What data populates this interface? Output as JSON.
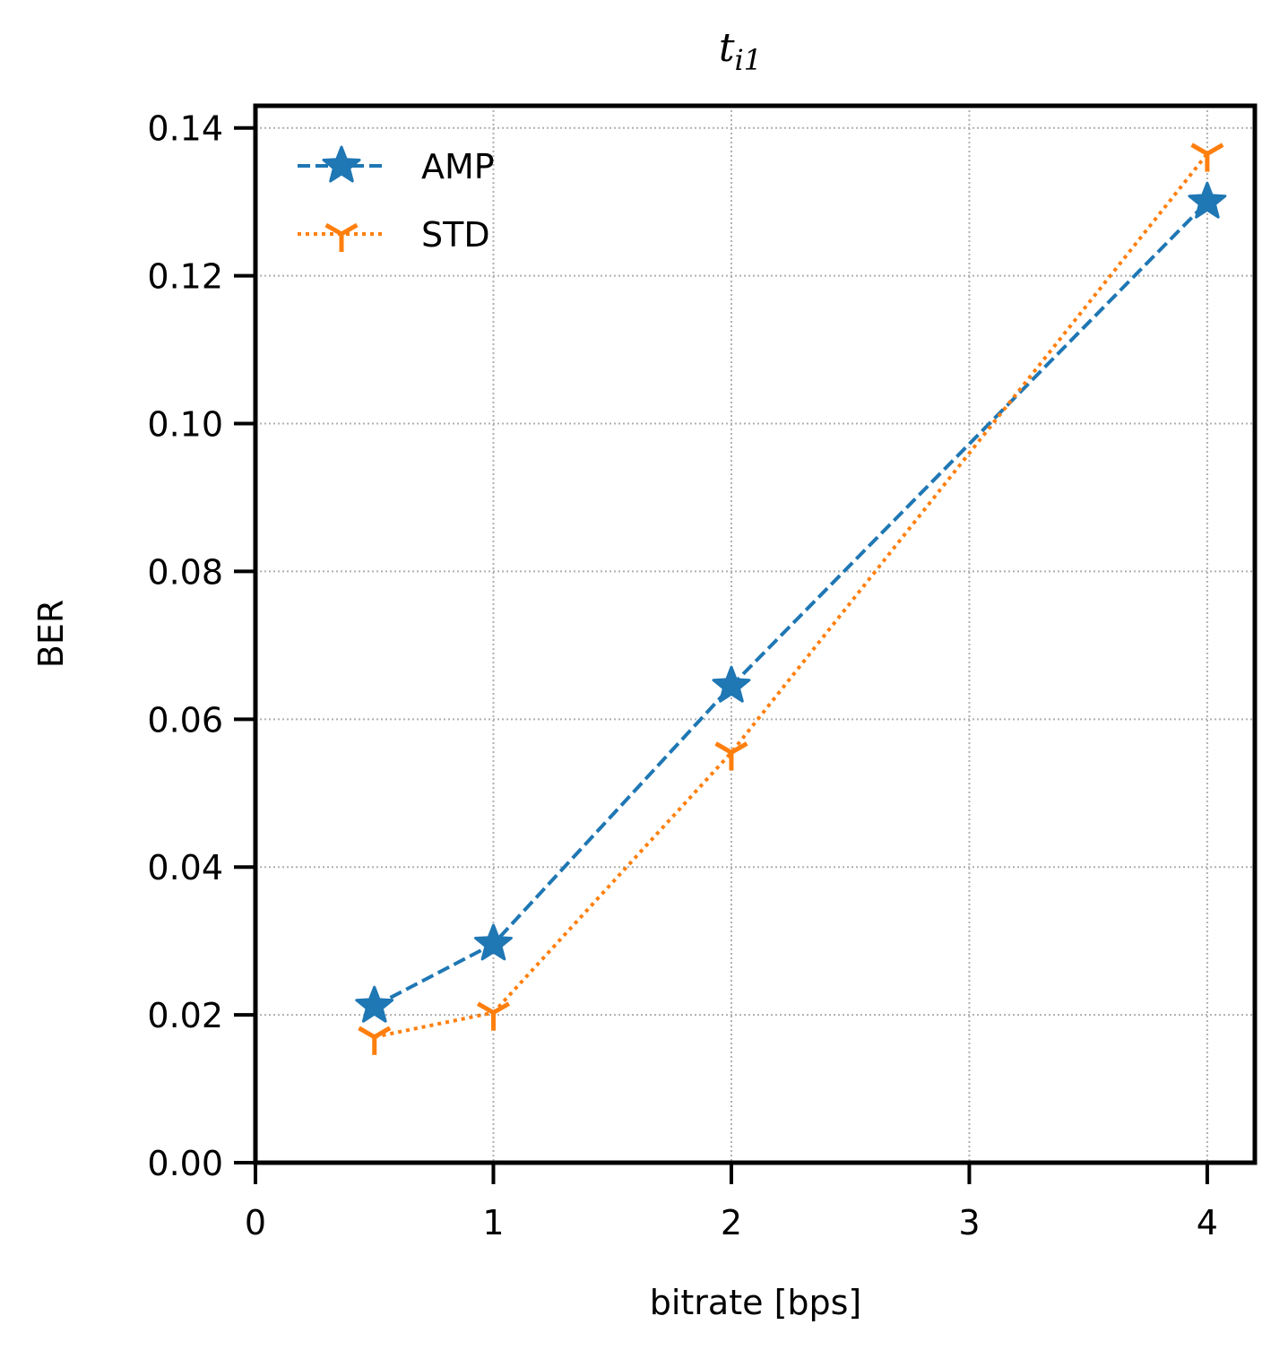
{
  "chart_data": {
    "type": "line",
    "title": {
      "base": "t",
      "subscript": "i1"
    },
    "xlabel": "bitrate [bps]",
    "ylabel": "BER",
    "xlim": [
      0,
      4.2
    ],
    "ylim": [
      0,
      0.143
    ],
    "xticks": [
      0,
      1,
      2,
      3,
      4
    ],
    "xtick_labels": [
      "0",
      "1",
      "2",
      "3",
      "4"
    ],
    "yticks": [
      0.0,
      0.02,
      0.04,
      0.06,
      0.08,
      0.1,
      0.12,
      0.14
    ],
    "ytick_labels": [
      "0.00",
      "0.02",
      "0.04",
      "0.06",
      "0.08",
      "0.10",
      "0.12",
      "0.14"
    ],
    "grid": true,
    "legend": "top-left",
    "series": [
      {
        "name": "AMP",
        "color": "#1f77b4",
        "linestyle": "dashed",
        "marker": "star",
        "x": [
          0.5,
          1,
          2,
          4
        ],
        "y": [
          0.0212,
          0.0296,
          0.0645,
          0.13
        ]
      },
      {
        "name": "STD",
        "color": "#ff7f0e",
        "linestyle": "dotted",
        "marker": "tri-down",
        "x": [
          0.5,
          1,
          2,
          4
        ],
        "y": [
          0.017,
          0.0203,
          0.0555,
          0.1365
        ]
      }
    ]
  }
}
